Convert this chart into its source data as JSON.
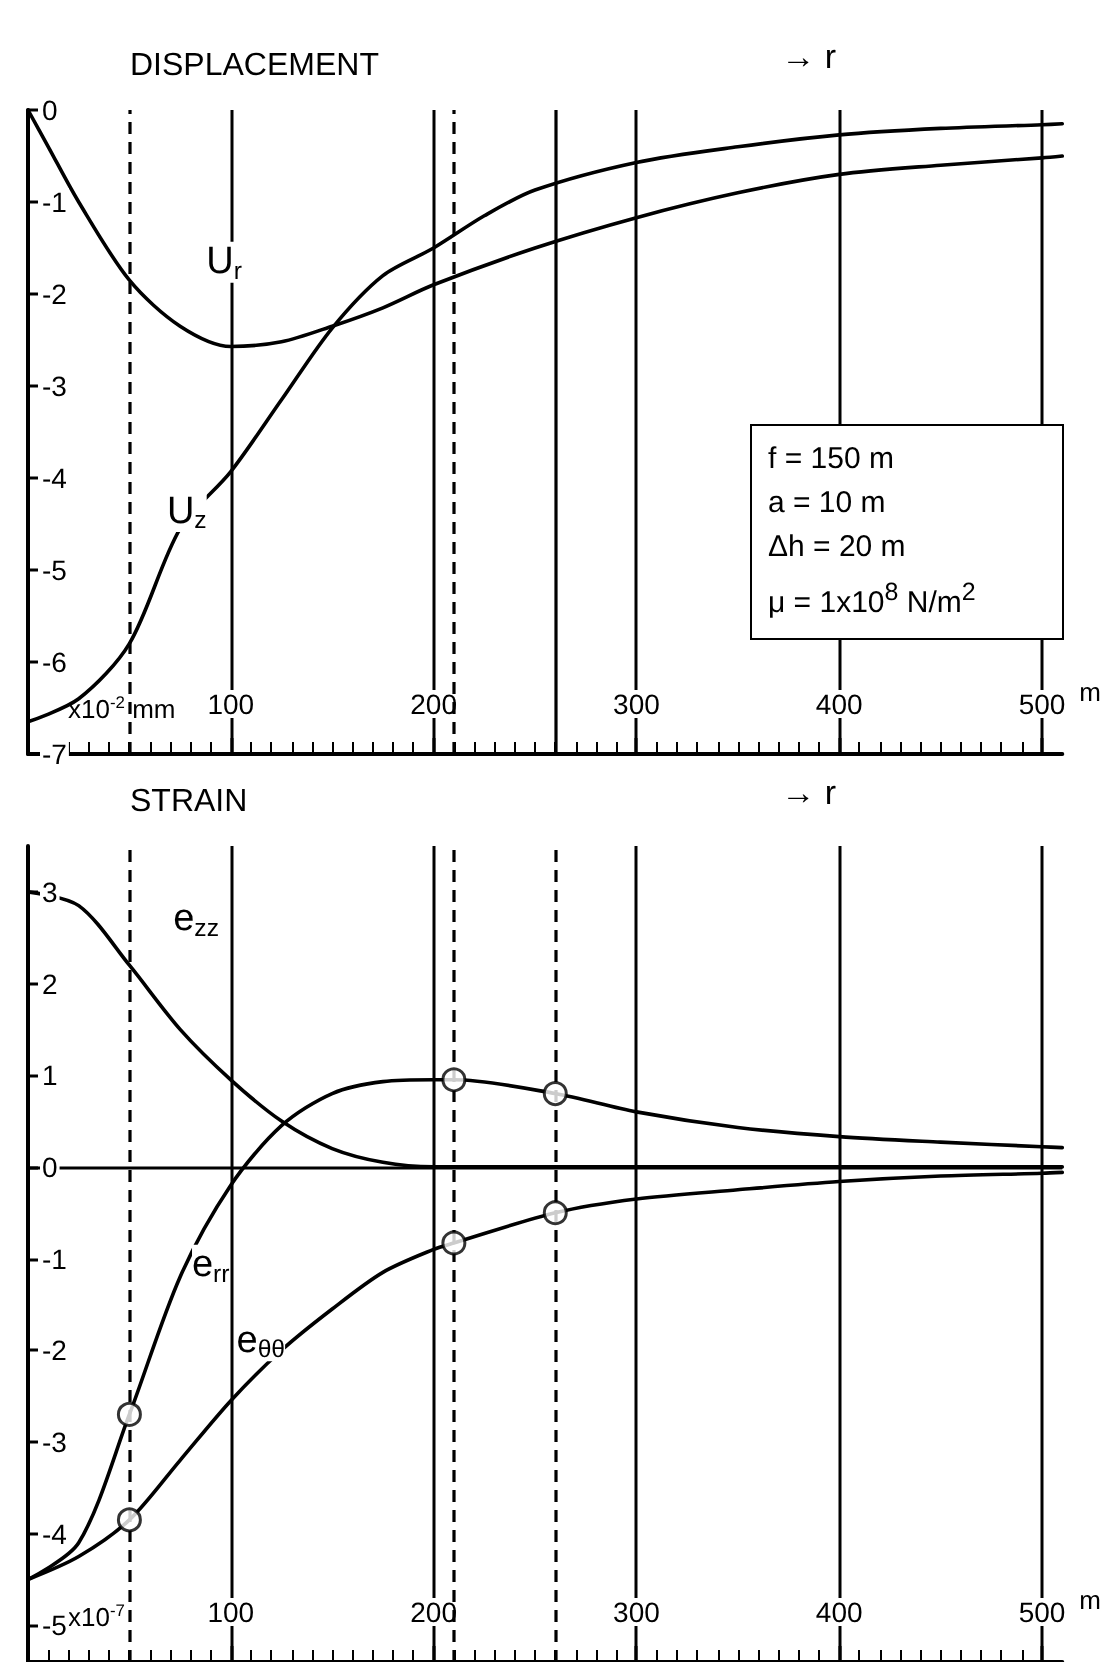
{
  "chart_data": [
    {
      "type": "line",
      "title": "DISPLACEMENT",
      "xlabel": "m",
      "ylabel": "x10$^{-2}$ mm",
      "annotations": [
        "→ r",
        "f = 150 m",
        "a = 10 m",
        "Δh = 20 m",
        "μ = 1x10$^{8}$ N/m$^{2}$"
      ],
      "series": [
        {
          "name": "U$_{r}$",
          "color": "#000000",
          "x": [
            0,
            10,
            25,
            50,
            75,
            100,
            125,
            150,
            175,
            200,
            250,
            300,
            350,
            400,
            450,
            500,
            510
          ],
          "values": [
            0,
            -0.4,
            -1.0,
            -1.85,
            -2.35,
            -2.57,
            -2.52,
            -2.35,
            -2.15,
            -1.9,
            -1.5,
            -1.17,
            -0.9,
            -0.7,
            -0.6,
            -0.52,
            -0.5
          ]
        },
        {
          "name": "U$_{z}$",
          "color": "#000000",
          "x": [
            0,
            25,
            50,
            75,
            100,
            125,
            150,
            175,
            200,
            225,
            250,
            300,
            350,
            400,
            450,
            500,
            510
          ],
          "values": [
            -6.65,
            -6.4,
            -5.8,
            -4.55,
            -3.93,
            -3.15,
            -2.37,
            -1.8,
            -1.5,
            -1.15,
            -0.87,
            -0.57,
            -0.4,
            -0.27,
            -0.2,
            -0.16,
            -0.15
          ]
        }
      ],
      "xlim": [
        0,
        510
      ],
      "xticks": [
        100,
        200,
        300,
        400,
        500
      ],
      "ylim": [
        -7,
        0
      ],
      "yticks": [
        0,
        -1,
        -2,
        -3,
        -4,
        -5,
        -6,
        -7
      ],
      "grid": "x",
      "legend": false,
      "marker": "none",
      "line_style": "solid",
      "ref_lines": [
        {
          "axis": "x",
          "value": 50,
          "line_style": "dashed"
        },
        {
          "axis": "x",
          "value": 210,
          "line_style": "dashed"
        },
        {
          "axis": "x",
          "value": 260,
          "line_style": "solid"
        }
      ]
    },
    {
      "type": "line",
      "title": "STRAIN",
      "xlabel": "m",
      "ylabel": "x10$^{-7}$",
      "annotations": [
        "→ r"
      ],
      "series": [
        {
          "name": "e$_{zz}$",
          "color": "#000000",
          "x": [
            0,
            25,
            50,
            75,
            100,
            125,
            150,
            175,
            200,
            250,
            300,
            400,
            510
          ],
          "values": [
            3.0,
            2.85,
            2.2,
            1.5,
            0.95,
            0.5,
            0.2,
            0.05,
            0,
            0,
            0,
            0,
            0
          ]
        },
        {
          "name": "e$_{rr}$",
          "color": "#000000",
          "x": [
            0,
            25,
            50,
            75,
            100,
            125,
            150,
            175,
            200,
            210,
            260,
            300,
            350,
            400,
            450,
            500,
            510
          ],
          "values": [
            -4.5,
            -4.1,
            -2.7,
            -1.2,
            -0.2,
            0.45,
            0.8,
            0.93,
            0.95,
            0.95,
            0.8,
            0.6,
            0.43,
            0.33,
            0.27,
            0.22,
            0.21
          ]
        },
        {
          "name": "e$_{θθ}$",
          "color": "#000000",
          "x": [
            0,
            25,
            50,
            75,
            100,
            125,
            150,
            175,
            200,
            210,
            260,
            300,
            350,
            400,
            450,
            500,
            510
          ],
          "values": [
            -4.5,
            -4.25,
            -3.85,
            -3.2,
            -2.55,
            -2.0,
            -1.55,
            -1.15,
            -0.9,
            -0.83,
            -0.5,
            -0.35,
            -0.25,
            -0.16,
            -0.1,
            -0.07,
            -0.06
          ]
        },
        {
          "type": "scatter",
          "marker": "circle",
          "color": "#ffffff",
          "x": [
            50,
            210,
            260,
            50,
            210,
            260
          ],
          "values": [
            -2.7,
            0.95,
            0.8,
            -3.85,
            -0.83,
            -0.5
          ]
        }
      ],
      "xlim": [
        0,
        510
      ],
      "xticks": [
        100,
        200,
        300,
        400,
        500
      ],
      "ylim": [
        -5.4,
        3.5
      ],
      "yticks": [
        3,
        2,
        1,
        0,
        -1,
        -2,
        -3,
        -4,
        -5
      ],
      "grid": "x",
      "legend": false,
      "marker": "none",
      "line_style": "solid",
      "ref_lines": [
        {
          "axis": "y",
          "value": 0,
          "line_style": "solid"
        },
        {
          "axis": "x",
          "value": 50,
          "line_style": "dashed"
        },
        {
          "axis": "x",
          "value": 210,
          "line_style": "dashed"
        },
        {
          "axis": "x",
          "value": 260,
          "line_style": "dashed"
        }
      ]
    }
  ]
}
